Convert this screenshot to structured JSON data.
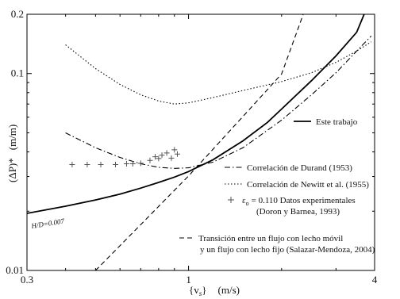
{
  "chart_data": {
    "type": "line",
    "xscale": "log",
    "yscale": "log",
    "xlim": [
      0.3,
      4
    ],
    "ylim": [
      0.01,
      0.2
    ],
    "xticks": [
      {
        "value": 0.3,
        "label": "0.3"
      },
      {
        "value": 1,
        "label": "1"
      },
      {
        "value": 4,
        "label": "4"
      }
    ],
    "yticks": [
      {
        "value": 0.01,
        "label": "0.01"
      },
      {
        "value": 0.1,
        "label": "0.1"
      },
      {
        "value": 0.2,
        "label": "0.2"
      }
    ],
    "xlabel": {
      "main": "{v",
      "sub": "s",
      "close": "}",
      "unit": "(m/s)"
    },
    "ylabel": {
      "main": "(ΔP)*",
      "unit": "(m/m)"
    },
    "grid": false,
    "legend_placement": "right",
    "annotation": "H/D=0.007",
    "series": [
      {
        "name": "Este trabajo",
        "style": "solid",
        "color": "#000000",
        "x": [
          0.3,
          0.4,
          0.5,
          0.6,
          0.7,
          0.8,
          0.9,
          1.0,
          1.2,
          1.5,
          1.8,
          2.0,
          2.5,
          3.0,
          3.5,
          3.7
        ],
        "y": [
          0.0195,
          0.0212,
          0.0228,
          0.0244,
          0.0262,
          0.028,
          0.0298,
          0.0318,
          0.0365,
          0.0455,
          0.0565,
          0.066,
          0.092,
          0.123,
          0.162,
          0.2
        ]
      },
      {
        "name": "Correlación de Durand (1953)",
        "style": "dashdot",
        "color": "#000000",
        "x": [
          0.4,
          0.5,
          0.6,
          0.7,
          0.8,
          0.9,
          1.0,
          1.2,
          1.5,
          2.0,
          2.5,
          3.0,
          3.5,
          3.9
        ],
        "y": [
          0.05,
          0.042,
          0.0375,
          0.0348,
          0.0334,
          0.033,
          0.0332,
          0.0355,
          0.042,
          0.058,
          0.078,
          0.101,
          0.13,
          0.155
        ]
      },
      {
        "name": "Correlación de Newitt et al. (1955)",
        "style": "dotted",
        "color": "#000000",
        "x": [
          0.4,
          0.5,
          0.6,
          0.7,
          0.8,
          0.9,
          1.0,
          1.2,
          1.5,
          2.0,
          2.5,
          3.0,
          3.5,
          3.9
        ],
        "y": [
          0.14,
          0.106,
          0.088,
          0.078,
          0.0725,
          0.07,
          0.071,
          0.0755,
          0.082,
          0.091,
          0.101,
          0.114,
          0.13,
          0.145
        ]
      },
      {
        "name": "Transición entre un flujo con lecho móvil y un flujo con lecho fijo (Salazar-Mendoza, 2004)",
        "style": "dashed",
        "color": "#000000",
        "x": [
          0.5,
          0.7,
          1.0,
          1.5,
          2.0,
          2.35
        ],
        "y": [
          0.01,
          0.0171,
          0.0302,
          0.0605,
          0.0995,
          0.2
        ]
      }
    ],
    "scatter": {
      "name": "ε0 = 0.110 Datos experimentales (Doron y Barnea, 1993)",
      "marker": "+",
      "x": [
        0.42,
        0.47,
        0.52,
        0.58,
        0.63,
        0.66,
        0.7,
        0.75,
        0.78,
        0.8,
        0.82,
        0.85,
        0.88,
        0.9,
        0.92
      ],
      "y": [
        0.0345,
        0.0345,
        0.0345,
        0.0345,
        0.0348,
        0.0348,
        0.035,
        0.0362,
        0.0378,
        0.037,
        0.0385,
        0.0395,
        0.0372,
        0.041,
        0.039
      ]
    },
    "legend": [
      {
        "style": "solid",
        "lines": [
          "Este trabajo"
        ]
      },
      {
        "style": "dashdot",
        "lines": [
          "Correlación de Durand (1953)"
        ]
      },
      {
        "style": "dotted",
        "lines": [
          "Correlación de Newitt et al. (1955)"
        ]
      },
      {
        "style": "marker",
        "prefix": "ε",
        "prefix_sub": "o",
        "lines": [
          "= 0.110 Datos experimentales",
          "(Doron y Barnea, 1993)"
        ]
      },
      {
        "style": "dashed",
        "lines": [
          "Transición entre un flujo con lecho móvil",
          "y un flujo con lecho fijo (Salazar-Mendoza, 2004)"
        ]
      }
    ]
  }
}
